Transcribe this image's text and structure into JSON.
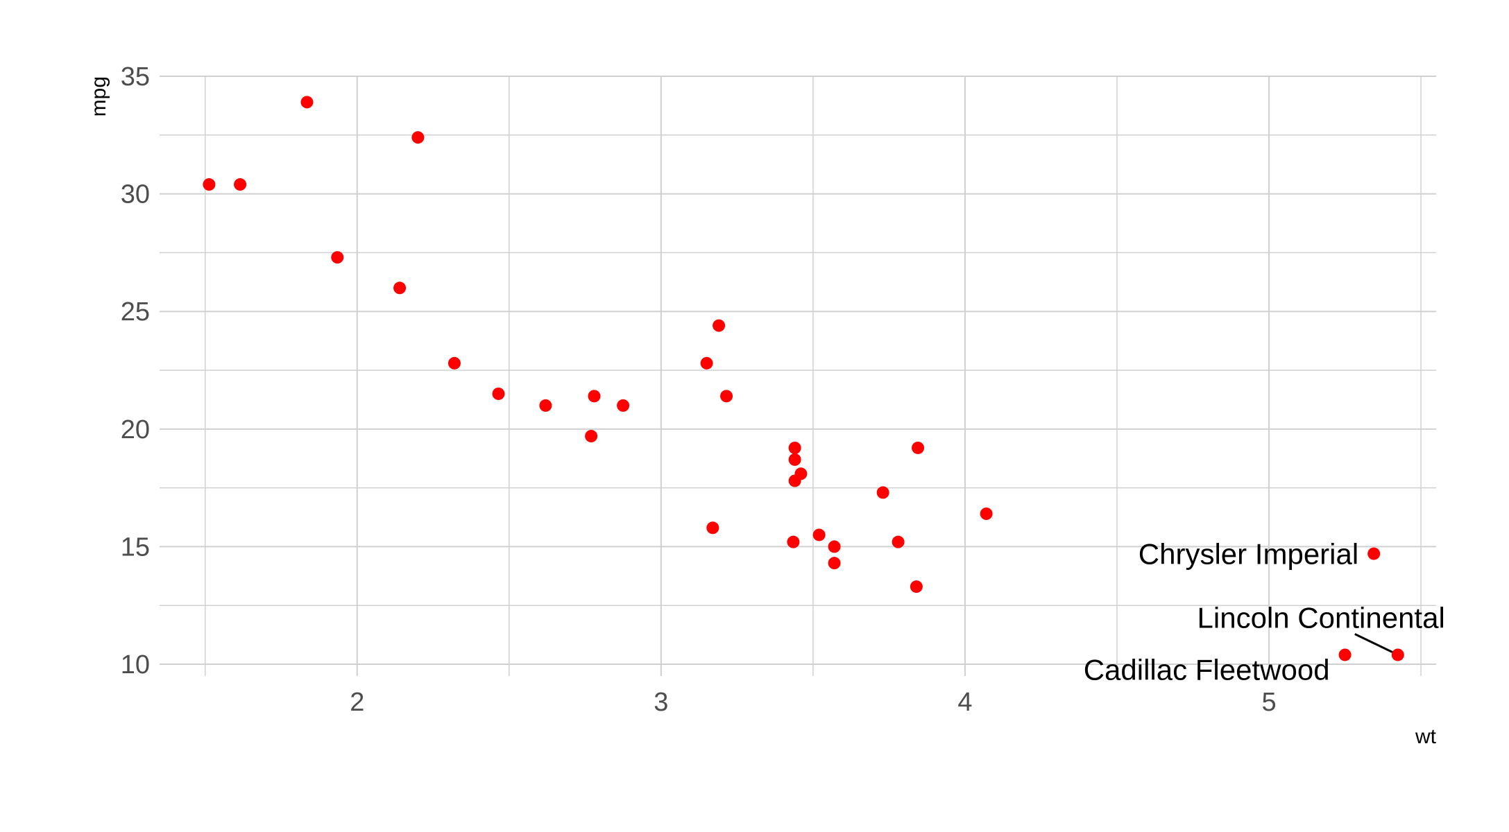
{
  "chart_data": {
    "type": "scatter",
    "title": "",
    "xlabel": "wt",
    "ylabel": "mpg",
    "xlim": [
      1.35,
      5.55
    ],
    "ylim": [
      9.5,
      35.0
    ],
    "grid": true,
    "xticks": [
      2,
      3,
      4,
      5
    ],
    "xtick_labels": [
      "2",
      "3",
      "4",
      "5"
    ],
    "yticks": [
      10,
      15,
      20,
      25,
      30,
      35
    ],
    "ytick_labels": [
      "10",
      "15",
      "20",
      "25",
      "30",
      "35"
    ],
    "point_color": "#ff0000",
    "points": [
      {
        "x": 2.62,
        "y": 21.0
      },
      {
        "x": 2.875,
        "y": 21.0
      },
      {
        "x": 2.32,
        "y": 22.8
      },
      {
        "x": 3.215,
        "y": 21.4
      },
      {
        "x": 3.44,
        "y": 18.7
      },
      {
        "x": 3.46,
        "y": 18.1
      },
      {
        "x": 3.57,
        "y": 14.3
      },
      {
        "x": 3.19,
        "y": 24.4
      },
      {
        "x": 3.15,
        "y": 22.8
      },
      {
        "x": 3.44,
        "y": 19.2
      },
      {
        "x": 3.44,
        "y": 17.8
      },
      {
        "x": 4.07,
        "y": 16.4
      },
      {
        "x": 3.73,
        "y": 17.3
      },
      {
        "x": 3.78,
        "y": 15.2
      },
      {
        "x": 5.25,
        "y": 10.4
      },
      {
        "x": 5.424,
        "y": 10.4
      },
      {
        "x": 5.345,
        "y": 14.7
      },
      {
        "x": 2.2,
        "y": 32.4
      },
      {
        "x": 1.615,
        "y": 30.4
      },
      {
        "x": 1.835,
        "y": 33.9
      },
      {
        "x": 2.465,
        "y": 21.5
      },
      {
        "x": 3.52,
        "y": 15.5
      },
      {
        "x": 3.435,
        "y": 15.2
      },
      {
        "x": 3.84,
        "y": 13.3
      },
      {
        "x": 3.845,
        "y": 19.2
      },
      {
        "x": 1.935,
        "y": 27.3
      },
      {
        "x": 2.14,
        "y": 26.0
      },
      {
        "x": 1.513,
        "y": 30.4
      },
      {
        "x": 3.17,
        "y": 15.8
      },
      {
        "x": 2.77,
        "y": 19.7
      },
      {
        "x": 3.57,
        "y": 15.0
      },
      {
        "x": 2.78,
        "y": 21.4
      }
    ],
    "annotations": [
      {
        "label": "Chrysler Imperial",
        "x": 5.345,
        "y": 14.7
      },
      {
        "label": "Lincoln Continental",
        "x": 5.424,
        "y": 10.4
      },
      {
        "label": "Cadillac Fleetwood",
        "x": 5.25,
        "y": 10.4
      }
    ]
  }
}
